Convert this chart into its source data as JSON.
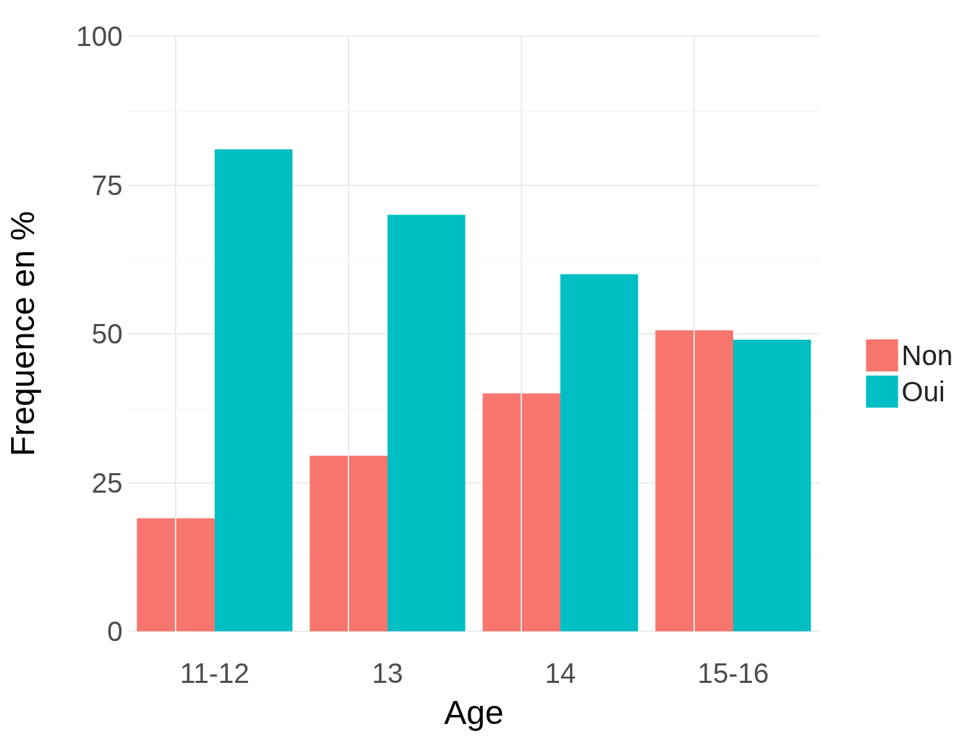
{
  "chart_data": {
    "type": "bar",
    "xlabel": "Age",
    "ylabel": "Frequence en %",
    "categories": [
      "11-12",
      "13",
      "14",
      "15-16"
    ],
    "series": [
      {
        "name": "Non",
        "color": "#f8766d",
        "values": [
          19,
          29.5,
          40,
          50.6
        ]
      },
      {
        "name": "Oui",
        "color": "#00bfc4",
        "values": [
          81,
          70,
          60,
          49
        ]
      }
    ],
    "ylim": [
      0,
      100
    ],
    "yticks": [
      0,
      25,
      50,
      75,
      100
    ],
    "grid": true,
    "legend": "right"
  }
}
